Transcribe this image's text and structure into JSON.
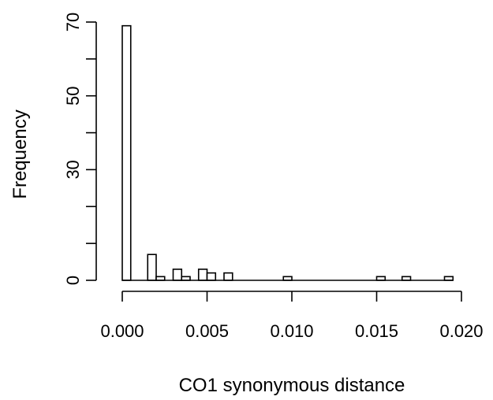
{
  "chart_data": {
    "type": "bar",
    "title": "",
    "xlabel": "CO1 synonymous distance",
    "ylabel": "Frequency",
    "xlim": [
      0,
      0.02
    ],
    "ylim": [
      0,
      70
    ],
    "bin_width": 0.0005,
    "x_ticks": [
      0,
      0.005,
      0.01,
      0.015,
      0.02
    ],
    "x_tick_labels": [
      "0.000",
      "0.005",
      "0.010",
      "0.015",
      "0.020"
    ],
    "y_ticks": [
      0,
      10,
      20,
      30,
      40,
      50,
      60,
      70
    ],
    "y_tick_labels": [
      "0",
      "",
      "",
      "30",
      "",
      "50",
      "",
      "70"
    ],
    "bins": [
      {
        "start": 0.0,
        "end": 0.0005,
        "count": 69
      },
      {
        "start": 0.0005,
        "end": 0.001,
        "count": 0
      },
      {
        "start": 0.001,
        "end": 0.0015,
        "count": 0
      },
      {
        "start": 0.0015,
        "end": 0.002,
        "count": 7
      },
      {
        "start": 0.002,
        "end": 0.0025,
        "count": 1
      },
      {
        "start": 0.0025,
        "end": 0.003,
        "count": 0
      },
      {
        "start": 0.003,
        "end": 0.0035,
        "count": 3
      },
      {
        "start": 0.0035,
        "end": 0.004,
        "count": 1
      },
      {
        "start": 0.004,
        "end": 0.0045,
        "count": 0
      },
      {
        "start": 0.0045,
        "end": 0.005,
        "count": 3
      },
      {
        "start": 0.005,
        "end": 0.0055,
        "count": 2
      },
      {
        "start": 0.0055,
        "end": 0.006,
        "count": 0
      },
      {
        "start": 0.006,
        "end": 0.0065,
        "count": 2
      },
      {
        "start": 0.0065,
        "end": 0.007,
        "count": 0
      },
      {
        "start": 0.007,
        "end": 0.0075,
        "count": 0
      },
      {
        "start": 0.0075,
        "end": 0.008,
        "count": 0
      },
      {
        "start": 0.008,
        "end": 0.0085,
        "count": 0
      },
      {
        "start": 0.0085,
        "end": 0.009,
        "count": 0
      },
      {
        "start": 0.009,
        "end": 0.0095,
        "count": 0
      },
      {
        "start": 0.0095,
        "end": 0.01,
        "count": 1
      },
      {
        "start": 0.01,
        "end": 0.0105,
        "count": 0
      },
      {
        "start": 0.0105,
        "end": 0.011,
        "count": 0
      },
      {
        "start": 0.011,
        "end": 0.0115,
        "count": 0
      },
      {
        "start": 0.0115,
        "end": 0.012,
        "count": 0
      },
      {
        "start": 0.012,
        "end": 0.0125,
        "count": 0
      },
      {
        "start": 0.0125,
        "end": 0.013,
        "count": 0
      },
      {
        "start": 0.013,
        "end": 0.0135,
        "count": 0
      },
      {
        "start": 0.0135,
        "end": 0.014,
        "count": 0
      },
      {
        "start": 0.014,
        "end": 0.0145,
        "count": 0
      },
      {
        "start": 0.0145,
        "end": 0.015,
        "count": 0
      },
      {
        "start": 0.015,
        "end": 0.0155,
        "count": 1
      },
      {
        "start": 0.0155,
        "end": 0.016,
        "count": 0
      },
      {
        "start": 0.016,
        "end": 0.0165,
        "count": 0
      },
      {
        "start": 0.0165,
        "end": 0.017,
        "count": 1
      },
      {
        "start": 0.017,
        "end": 0.0175,
        "count": 0
      },
      {
        "start": 0.0175,
        "end": 0.018,
        "count": 0
      },
      {
        "start": 0.018,
        "end": 0.0185,
        "count": 0
      },
      {
        "start": 0.0185,
        "end": 0.019,
        "count": 0
      },
      {
        "start": 0.019,
        "end": 0.0195,
        "count": 1
      }
    ],
    "grid": false,
    "bar_fill": "#ffffff",
    "bar_stroke": "#000000"
  }
}
